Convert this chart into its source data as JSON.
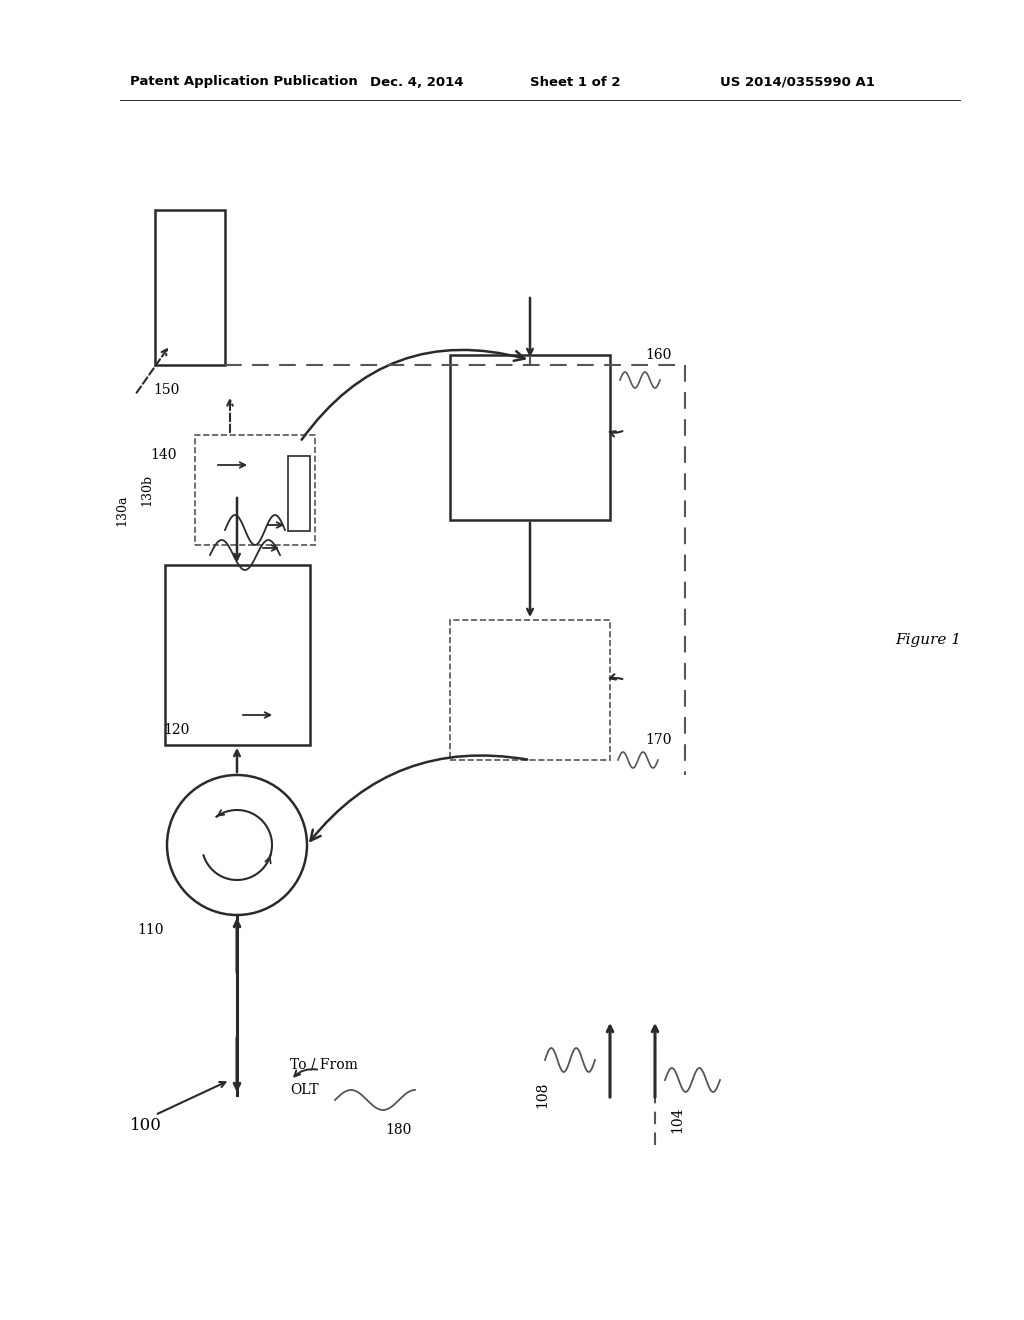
{
  "bg_color": "#ffffff",
  "line_color": "#2a2a2a",
  "dash_color": "#555555",
  "header_left": "Patent Application Publication",
  "header_mid1": "Dec. 4, 2014",
  "header_mid2": "Sheet 1 of 2",
  "header_right": "US 2014/0355990 A1",
  "figure_label": "Figure 1",
  "label_100": "100",
  "label_104": "104",
  "label_108": "108",
  "label_110": "110",
  "label_120": "120",
  "label_130a": "130a",
  "label_130b": "130b",
  "label_140": "140",
  "label_150": "150",
  "label_160": "160",
  "label_170": "170",
  "label_180": "180",
  "olt_line1": "To / From",
  "olt_line2": "OLT"
}
